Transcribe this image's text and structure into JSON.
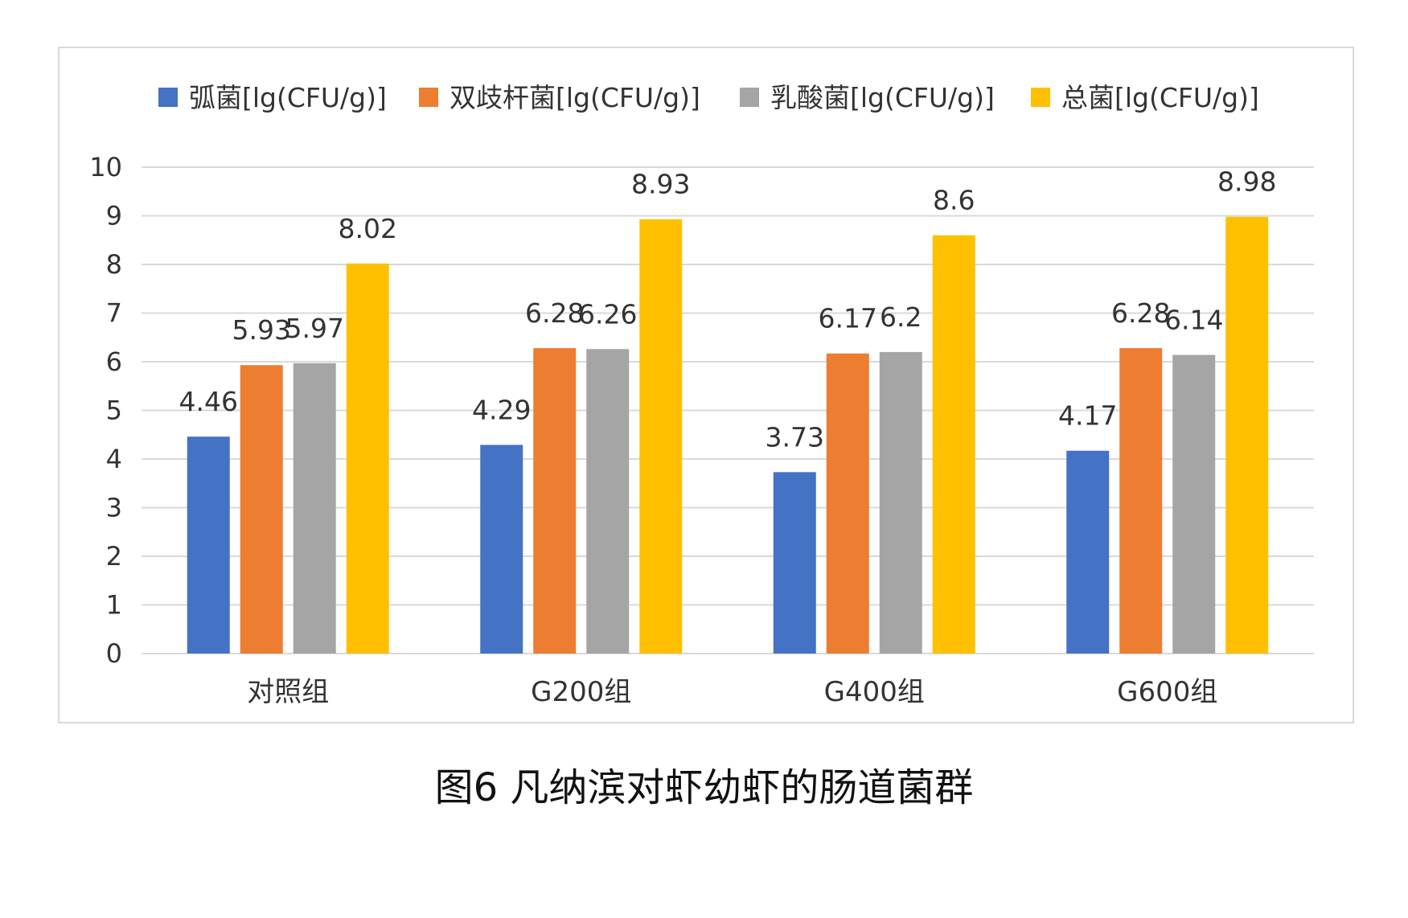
{
  "caption": "图6 凡纳滨对虾幼虾的肠道菌群",
  "chart_data": {
    "type": "bar",
    "categories": [
      "对照组",
      "G200组",
      "G400组",
      "G600组"
    ],
    "series": [
      {
        "name": "弧菌[lg(CFU/g)]",
        "color": "#4472C4",
        "values": [
          4.46,
          4.29,
          3.73,
          4.17
        ]
      },
      {
        "name": "双歧杆菌[lg(CFU/g)]",
        "color": "#ED7D31",
        "values": [
          5.93,
          6.28,
          6.17,
          6.28
        ]
      },
      {
        "name": "乳酸菌[lg(CFU/g)]",
        "color": "#A5A5A5",
        "values": [
          5.97,
          6.26,
          6.2,
          6.14
        ]
      },
      {
        "name": "总菌[lg(CFU/g)]",
        "color": "#FFC000",
        "values": [
          8.02,
          8.93,
          8.6,
          8.98
        ]
      }
    ],
    "ylim": [
      0,
      10
    ],
    "yticks": [
      0,
      1,
      2,
      3,
      4,
      5,
      6,
      7,
      8,
      9,
      10
    ],
    "grid": true,
    "legend_position": "top",
    "gridline_color": "#d9d9d9"
  }
}
